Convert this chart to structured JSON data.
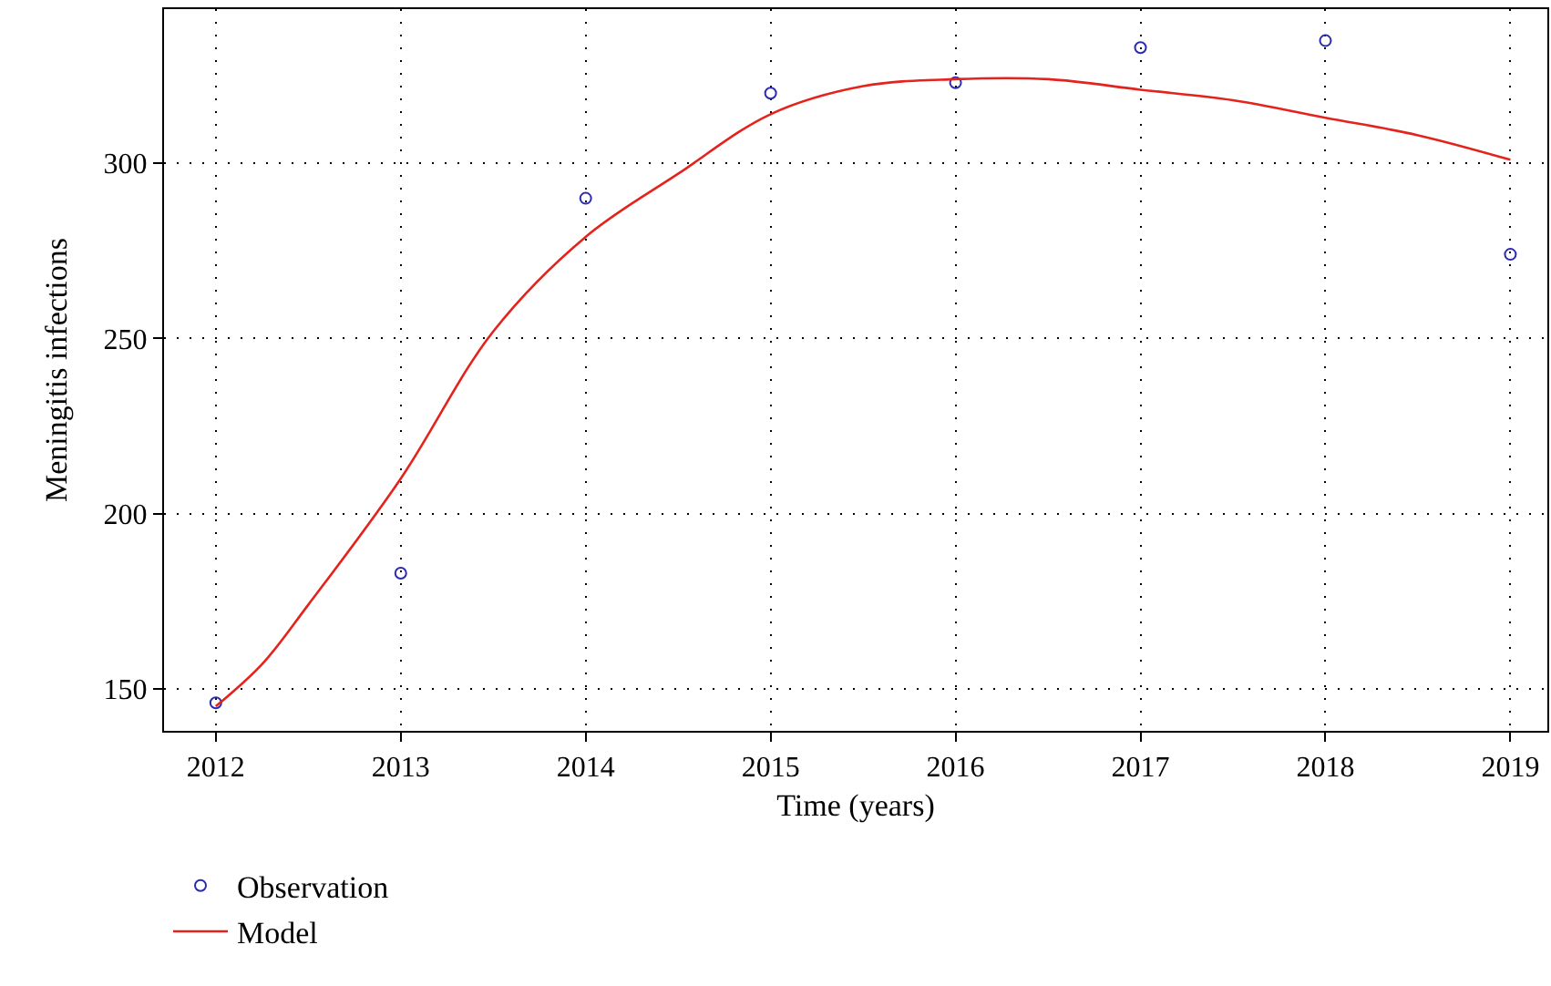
{
  "chart_data": {
    "type": "scatter",
    "xlabel": "Time (years)",
    "ylabel": "Meningitis infections",
    "xlim": [
      2011.72,
      2019.2
    ],
    "xticks": [
      2012,
      2013,
      2014,
      2015,
      2016,
      2017,
      2018,
      2019
    ],
    "ylim": [
      138,
      344
    ],
    "yticks": [
      150,
      200,
      250,
      300
    ],
    "grid": true,
    "legend": "bottom left",
    "series": [
      {
        "name": "Observation",
        "marker": "circle",
        "color": "#2b2bb0",
        "x": [
          2012,
          2013,
          2014,
          2015,
          2016,
          2017,
          2018,
          2019
        ],
        "values": [
          146,
          183,
          290,
          320,
          323,
          333,
          335,
          274
        ]
      },
      {
        "name": "Model",
        "type": "line",
        "marker": "none",
        "line_style": "solid",
        "color": "#e3231c",
        "x": [
          2012,
          2012.25,
          2012.5,
          2013,
          2013.5,
          2014,
          2014.5,
          2015,
          2015.5,
          2016,
          2016.5,
          2017,
          2017.5,
          2018,
          2018.5,
          2019
        ],
        "values": [
          145,
          157,
          174,
          210,
          252,
          279,
          297,
          314,
          322,
          324,
          324,
          321,
          318,
          313,
          308,
          301
        ]
      }
    ]
  }
}
